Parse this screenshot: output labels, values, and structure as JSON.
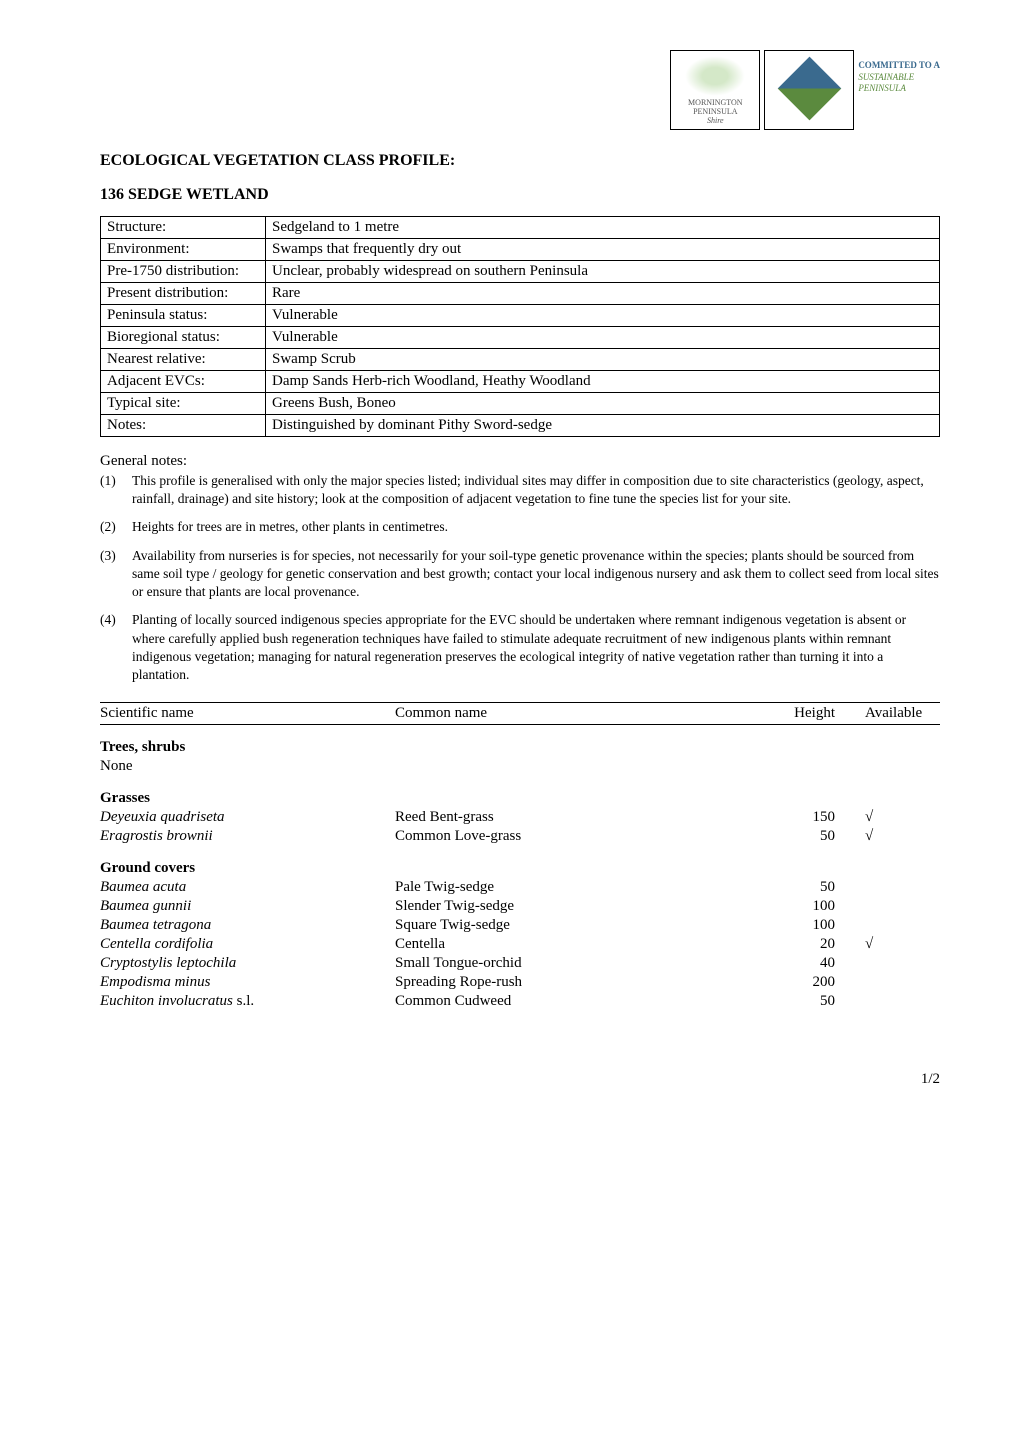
{
  "header": {
    "logo1": {
      "line1": "MORNINGTON",
      "line2": "PENINSULA",
      "line3": "Shire"
    },
    "logo2_text": {
      "line1": "COMMITTED TO A",
      "line2": "SUSTAINABLE",
      "line3": "PENINSULA"
    }
  },
  "title": "ECOLOGICAL VEGETATION CLASS PROFILE:",
  "subtitle": "136   SEDGE WETLAND",
  "profile": {
    "rows": [
      {
        "label": "Structure:",
        "value": "Sedgeland to 1 metre"
      },
      {
        "label": "Environment:",
        "value": "Swamps that frequently dry out"
      },
      {
        "label": "Pre-1750 distribution:",
        "value": "Unclear, probably widespread on southern Peninsula"
      },
      {
        "label": "Present distribution:",
        "value": "Rare"
      },
      {
        "label": "Peninsula status:",
        "value": "Vulnerable"
      },
      {
        "label": "Bioregional status:",
        "value": "Vulnerable"
      },
      {
        "label": "Nearest relative:",
        "value": "Swamp Scrub"
      },
      {
        "label": "Adjacent EVCs:",
        "value": "Damp Sands Herb-rich Woodland, Heathy Woodland"
      },
      {
        "label": "Typical site:",
        "value": "Greens Bush, Boneo"
      },
      {
        "label": "Notes:",
        "value": "Distinguished by dominant Pithy Sword-sedge"
      }
    ]
  },
  "notes_heading": "General notes:",
  "notes": [
    {
      "num": "(1)",
      "text": "This profile is generalised with only the major species listed; individual sites may differ in composition due to site characteristics (geology, aspect, rainfall, drainage) and site history; look at the composition of adjacent vegetation to fine tune the species list for your site."
    },
    {
      "num": "(2)",
      "text": "Heights for trees are in metres, other plants in centimetres."
    },
    {
      "num": "(3)",
      "text": "Availability from nurseries is for species, not necessarily for your soil-type genetic provenance within the species; plants should be sourced from same soil type / geology for genetic conservation and best growth; contact your local indigenous nursery and ask them to collect seed from local sites or ensure that plants are local provenance."
    },
    {
      "num": "(4)",
      "text": "Planting of locally sourced indigenous species appropriate for the EVC should be undertaken where remnant indigenous vegetation is absent or where carefully applied bush regeneration techniques have failed to stimulate adequate recruitment of new indigenous plants within remnant indigenous vegetation; managing for natural regeneration preserves the ecological integrity of native vegetation rather than turning it into a plantation."
    }
  ],
  "species_header": {
    "sci": "Scientific name",
    "com": "Common name",
    "h": "Height",
    "a": "Available"
  },
  "sections": [
    {
      "name": "Trees, shrubs",
      "none_text": "None",
      "rows": []
    },
    {
      "name": "Grasses",
      "rows": [
        {
          "sci": "Deyeuxia quadriseta",
          "com": "Reed Bent-grass",
          "h": "150",
          "tick": true
        },
        {
          "sci": "Eragrostis brownii",
          "com": "Common Love-grass",
          "h": "50",
          "tick": true
        }
      ]
    },
    {
      "name": "Ground covers",
      "rows": [
        {
          "sci": "Baumea acuta",
          "com": "Pale Twig-sedge",
          "h": "50",
          "tick": false
        },
        {
          "sci": "Baumea gunnii",
          "com": "Slender Twig-sedge",
          "h": "100",
          "tick": false
        },
        {
          "sci": "Baumea tetragona",
          "com": "Square Twig-sedge",
          "h": "100",
          "tick": false
        },
        {
          "sci": "Centella cordifolia",
          "com": "Centella",
          "h": "20",
          "tick": true
        },
        {
          "sci": "Cryptostylis leptochila",
          "com": "Small Tongue-orchid",
          "h": "40",
          "tick": false
        },
        {
          "sci": "Empodisma minus",
          "com": "Spreading Rope-rush",
          "h": "200",
          "tick": false
        },
        {
          "sci": "Euchiton involucratus s.l.",
          "com": "Common Cudweed",
          "h": "50",
          "tick": false
        }
      ]
    }
  ],
  "sci_suffix_plain": " s.l.",
  "footer": "1/2",
  "tick_glyph": "√"
}
